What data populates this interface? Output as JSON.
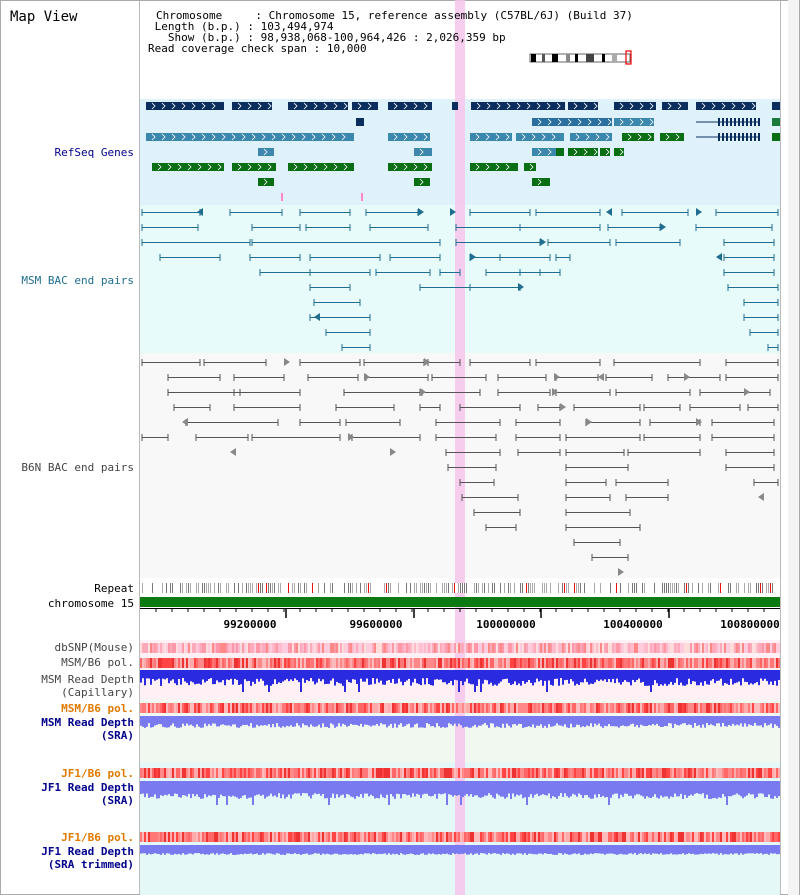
{
  "title": "Map View",
  "info": {
    "chromosome_key": "Chromosome",
    "chromosome_val": "Chromosome 15, reference assembly (C57BL/6J) (Build 37)",
    "length_key": "Length (b.p.)",
    "length_val": "103,494,974",
    "show_key": "Show (b.p.)",
    "show_val": "98,938,068-100,964,426 : 2,026,359 bp",
    "coverage_key": "Read coverage check span",
    "coverage_val": "10,000"
  },
  "tracks": {
    "refseq": "RefSeq Genes",
    "msm_bac": "MSM BAC end pairs",
    "b6n_bac": "B6N BAC end pairs",
    "repeat": "Repeat",
    "chromosome": "chromosome 15",
    "dbsnp": "dbSNP(Mouse)",
    "msm_b6_pol_1": "MSM/B6 pol.",
    "msm_depth_cap_1": "MSM Read Depth",
    "msm_depth_cap_2": "(Capillary)",
    "msm_b6_pol_2": "MSM/B6 pol.",
    "msm_depth_sra_1": "MSM Read Depth",
    "msm_depth_sra_2": "(SRA)",
    "jf1_pol_1": "JF1/B6 pol.",
    "jf1_depth_sra_1": "JF1 Read Depth",
    "jf1_depth_sra_2": "(SRA)",
    "jf1_pol_2": "JF1/B6 pol.",
    "jf1_depth_trim_1": "JF1 Read Depth",
    "jf1_depth_trim_2": "(SRA trimmed)"
  },
  "ruler": {
    "ticks": [
      "99200000",
      "99600000",
      "100000000",
      "100400000",
      "100800000"
    ]
  },
  "colors": {
    "refseq_dark": "#0b2e5e",
    "refseq_mid": "#3b87ad",
    "refseq_green": "#0a6e14",
    "msm_bac": "#1f6d8f",
    "b6n_bac": "#555555",
    "highlight": "#f7c6ec",
    "chromosome": "#0b7a12",
    "snp_red": "#f25555",
    "depth_blue": "#2a2ae0",
    "depth_lightblue": "#7a7af0",
    "orange_label": "#e07a00",
    "blue_label": "#00008b"
  }
}
